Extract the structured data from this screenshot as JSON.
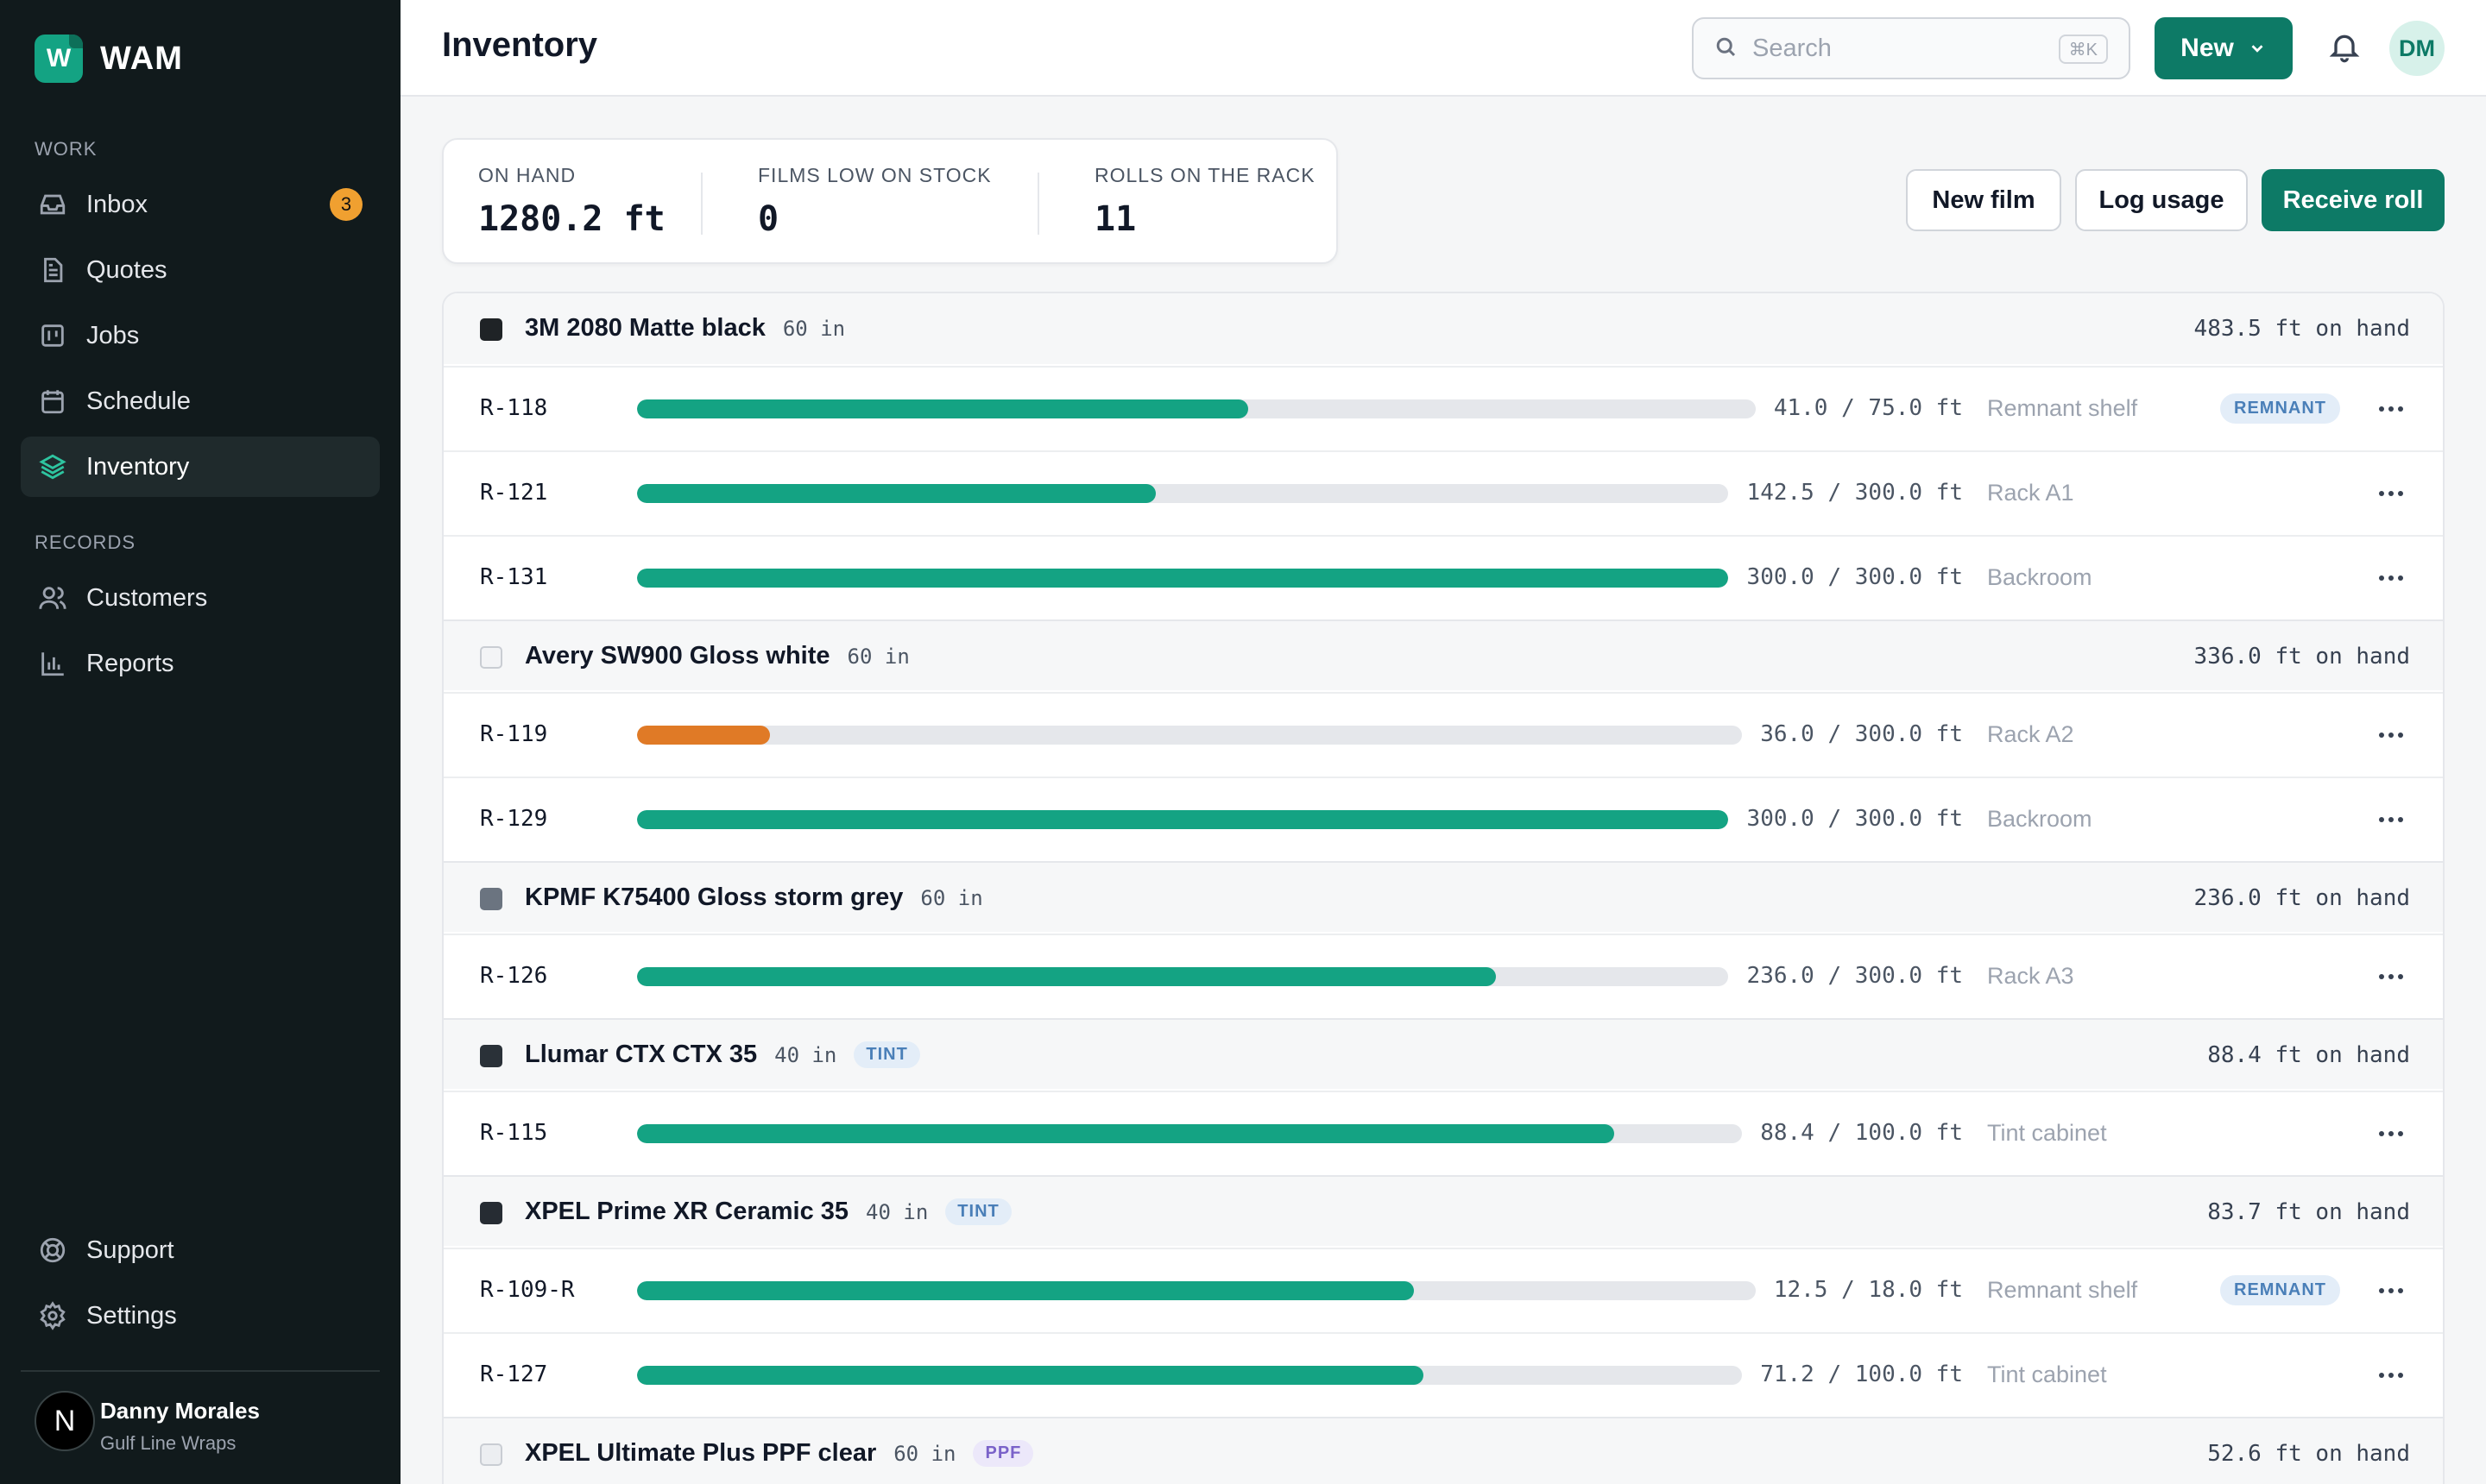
{
  "app": {
    "name": "WAM",
    "logo_letter": "W"
  },
  "sidebar": {
    "sections": [
      {
        "label": "WORK"
      },
      {
        "label": "RECORDS"
      }
    ],
    "items": [
      {
        "label": "Inbox",
        "icon": "inbox-icon",
        "badge": "3"
      },
      {
        "label": "Quotes",
        "icon": "document-icon"
      },
      {
        "label": "Jobs",
        "icon": "kanban-icon"
      },
      {
        "label": "Schedule",
        "icon": "calendar-icon"
      },
      {
        "label": "Inventory",
        "icon": "layers-icon",
        "active": true
      },
      {
        "label": "Customers",
        "icon": "users-icon"
      },
      {
        "label": "Reports",
        "icon": "bar-chart-icon"
      },
      {
        "label": "Support",
        "icon": "lifebuoy-icon"
      },
      {
        "label": "Settings",
        "icon": "gear-icon"
      }
    ],
    "user": {
      "initial": "N",
      "name": "Danny Morales",
      "org": "Gulf Line Wraps"
    }
  },
  "header": {
    "title": "Inventory",
    "search_placeholder": "Search",
    "search_shortcut": "⌘K",
    "new_label": "New",
    "avatar_initials": "DM"
  },
  "stats": [
    {
      "label": "ON HAND",
      "value": "1280.2 ft"
    },
    {
      "label": "FILMS LOW ON STOCK",
      "value": "0"
    },
    {
      "label": "ROLLS ON THE RACK",
      "value": "11"
    }
  ],
  "actions": {
    "new_film": "New film",
    "log_usage": "Log usage",
    "receive_roll": "Receive roll"
  },
  "colors": {
    "accent": "#0d7a66",
    "bar_ok": "#14a383",
    "bar_low": "#e07a26"
  },
  "films": [
    {
      "name": "3M 2080 Matte black",
      "width": "60 in",
      "swatch": "#1f2326",
      "total": "483.5 ft on hand",
      "rolls": [
        {
          "id": "R-118",
          "used": 41.0,
          "capacity": 75.0,
          "qty": "41.0 / 75.0 ft",
          "location": "Remnant shelf",
          "remnant": "REMNANT"
        },
        {
          "id": "R-121",
          "used": 142.5,
          "capacity": 300.0,
          "qty": "142.5 / 300.0 ft",
          "location": "Rack A1"
        },
        {
          "id": "R-131",
          "used": 300.0,
          "capacity": 300.0,
          "qty": "300.0 / 300.0 ft",
          "location": "Backroom"
        }
      ]
    },
    {
      "name": "Avery SW900 Gloss white",
      "width": "60 in",
      "swatch": "#f3f4f6",
      "total": "336.0 ft on hand",
      "rolls": [
        {
          "id": "R-119",
          "used": 36.0,
          "capacity": 300.0,
          "qty": "36.0 / 300.0 ft",
          "location": "Rack A2",
          "low": true
        },
        {
          "id": "R-129",
          "used": 300.0,
          "capacity": 300.0,
          "qty": "300.0 / 300.0 ft",
          "location": "Backroom"
        }
      ]
    },
    {
      "name": "KPMF K75400 Gloss storm grey",
      "width": "60 in",
      "swatch": "#6b7480",
      "total": "236.0 ft on hand",
      "rolls": [
        {
          "id": "R-126",
          "used": 236.0,
          "capacity": 300.0,
          "qty": "236.0 / 300.0 ft",
          "location": "Rack A3"
        }
      ]
    },
    {
      "name": "Llumar CTX CTX 35",
      "width": "40 in",
      "tag": "TINT",
      "swatch": "#2a3138",
      "total": "88.4 ft on hand",
      "rolls": [
        {
          "id": "R-115",
          "used": 88.4,
          "capacity": 100.0,
          "qty": "88.4 / 100.0 ft",
          "location": "Tint cabinet"
        }
      ]
    },
    {
      "name": "XPEL Prime XR Ceramic 35",
      "width": "40 in",
      "tag": "TINT",
      "swatch": "#262c33",
      "total": "83.7 ft on hand",
      "rolls": [
        {
          "id": "R-109-R",
          "used": 12.5,
          "capacity": 18.0,
          "qty": "12.5 / 18.0 ft",
          "location": "Remnant shelf",
          "remnant": "REMNANT"
        },
        {
          "id": "R-127",
          "used": 71.2,
          "capacity": 100.0,
          "qty": "71.2 / 100.0 ft",
          "location": "Tint cabinet"
        }
      ]
    },
    {
      "name": "XPEL Ultimate Plus PPF clear",
      "width": "60 in",
      "tag": "PPF",
      "swatch": "#eceef1",
      "total": "52.6 ft on hand",
      "rolls": []
    }
  ]
}
